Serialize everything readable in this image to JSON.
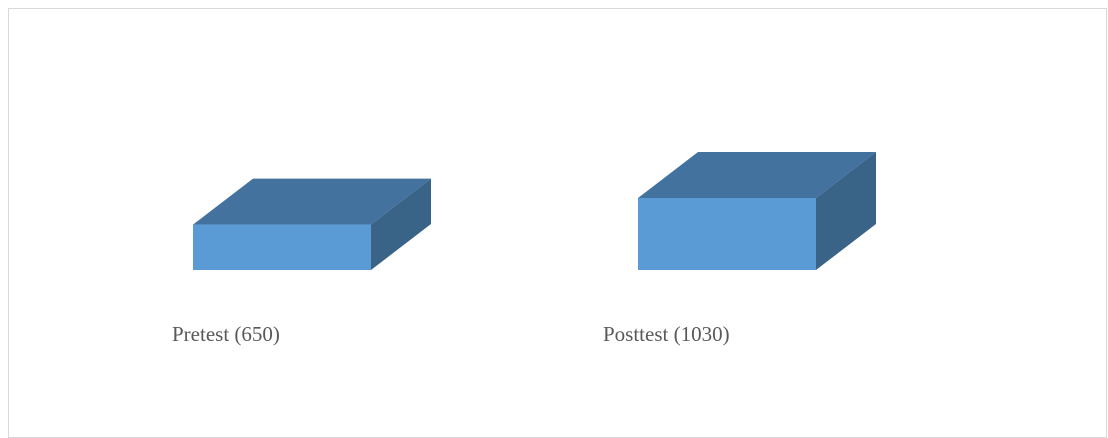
{
  "chart_data": {
    "type": "bar",
    "categories": [
      "Pretest (650)",
      "Posttest (1030)"
    ],
    "values": [
      650,
      1030
    ],
    "title": "",
    "xlabel": "",
    "ylabel": "",
    "grid": false,
    "legend": "none",
    "colors": {
      "front": "#5b9bd5",
      "top": "#44729e",
      "side": "#3a6388",
      "frame": "#d9d9d9",
      "label": "#595959"
    }
  }
}
